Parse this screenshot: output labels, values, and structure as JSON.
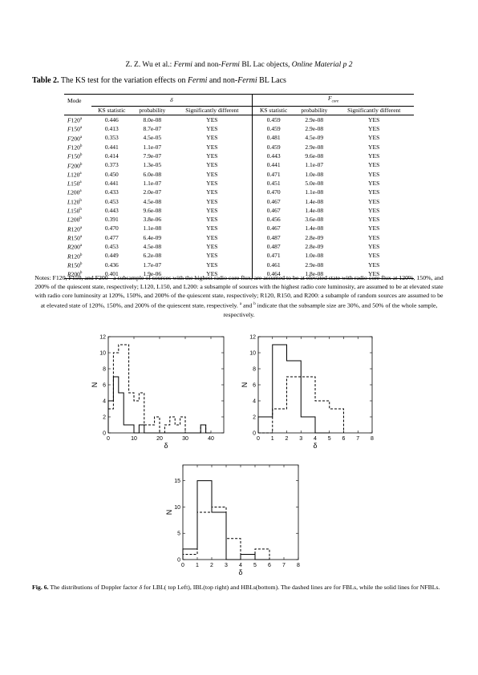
{
  "header": {
    "authors": "Z. Z. Wu et al.: ",
    "fermi": "Fermi",
    "and_non": " and non-",
    "fermi2": "Fermi",
    "rest": " BL Lac objects, ",
    "online": "Online Material p 2"
  },
  "table": {
    "label": "Table 2.",
    "title_a": " The KS test for the variation effects on ",
    "fermi": "Fermi",
    "title_b": " and non-",
    "fermi2": "Fermi",
    "title_c": " BL Lacs",
    "col_mode": "Mode",
    "group1": "δ",
    "group2_main": "F",
    "group2_sub": "core",
    "sub_headers": [
      "KS statistic",
      "probability",
      "Significantly different",
      "KS statistic",
      "probability",
      "Significantly different"
    ],
    "rows": [
      {
        "pre": "F",
        "num": "120",
        "sup": "a",
        "v": [
          "0.446",
          "8.0e-08",
          "YES",
          "0.459",
          "2.9e-08",
          "YES"
        ]
      },
      {
        "pre": "F",
        "num": "150",
        "sup": "a",
        "v": [
          "0.413",
          "8.7e-07",
          "YES",
          "0.459",
          "2.9e-08",
          "YES"
        ]
      },
      {
        "pre": "F",
        "num": "200",
        "sup": "a",
        "v": [
          "0.353",
          "4.5e-05",
          "YES",
          "0.481",
          "4.5e-09",
          "YES"
        ]
      },
      {
        "pre": "F",
        "num": "120",
        "sup": "b",
        "v": [
          "0.441",
          "1.1e-07",
          "YES",
          "0.459",
          "2.9e-08",
          "YES"
        ]
      },
      {
        "pre": "F",
        "num": "150",
        "sup": "b",
        "v": [
          "0.414",
          "7.9e-07",
          "YES",
          "0.443",
          "9.6e-08",
          "YES"
        ]
      },
      {
        "pre": "F",
        "num": "200",
        "sup": "b",
        "v": [
          "0.373",
          "1.3e-05",
          "YES",
          "0.441",
          "1.1e-07",
          "YES"
        ]
      },
      {
        "pre": "L",
        "num": "120",
        "sup": "a",
        "v": [
          "0.450",
          "6.0e-08",
          "YES",
          "0.471",
          "1.0e-08",
          "YES"
        ]
      },
      {
        "pre": "L",
        "num": "150",
        "sup": "a",
        "v": [
          "0.441",
          "1.1e-07",
          "YES",
          "0.451",
          "5.0e-08",
          "YES"
        ]
      },
      {
        "pre": "L",
        "num": "200",
        "sup": "a",
        "v": [
          "0.433",
          "2.0e-07",
          "YES",
          "0.470",
          "1.1e-08",
          "YES"
        ]
      },
      {
        "pre": "L",
        "num": "120",
        "sup": "b",
        "v": [
          "0.453",
          "4.5e-08",
          "YES",
          "0.467",
          "1.4e-08",
          "YES"
        ]
      },
      {
        "pre": "L",
        "num": "150",
        "sup": "b",
        "v": [
          "0.443",
          "9.6e-08",
          "YES",
          "0.467",
          "1.4e-08",
          "YES"
        ]
      },
      {
        "pre": "L",
        "num": "200",
        "sup": "b",
        "v": [
          "0.391",
          "3.8e-06",
          "YES",
          "0.456",
          "3.6e-08",
          "YES"
        ]
      },
      {
        "pre": "R",
        "num": "120",
        "sup": "a",
        "v": [
          "0.470",
          "1.1e-08",
          "YES",
          "0.467",
          "1.4e-08",
          "YES"
        ]
      },
      {
        "pre": "R",
        "num": "150",
        "sup": "a",
        "v": [
          "0.477",
          "6.4e-09",
          "YES",
          "0.487",
          "2.8e-09",
          "YES"
        ]
      },
      {
        "pre": "R",
        "num": "200",
        "sup": "a",
        "v": [
          "0.453",
          "4.5e-08",
          "YES",
          "0.487",
          "2.8e-09",
          "YES"
        ]
      },
      {
        "pre": "R",
        "num": "120",
        "sup": "b",
        "v": [
          "0.449",
          "6.2e-08",
          "YES",
          "0.471",
          "1.0e-08",
          "YES"
        ]
      },
      {
        "pre": "R",
        "num": "150",
        "sup": "b",
        "v": [
          "0.436",
          "1.7e-07",
          "YES",
          "0.461",
          "2.9e-08",
          "YES"
        ]
      },
      {
        "pre": "R",
        "num": "200",
        "sup": "b",
        "v": [
          "0.401",
          "1.9e-06",
          "YES",
          "0.464",
          "1.8e-08",
          "YES"
        ]
      }
    ],
    "notes_a": "Notes: F120, F150, and F200 - a subsample of sources with the highest radio core flux, are assumed to be at elevated state with radio core flux at 120%, 150%, and 200% of the quiescent state, respectively; L120, L150, and L200: a subsample of sources with the highest radio core luminosity, are assumed to be at elevated state with radio core luminosity at 120%, 150%, and 200% of the quiescent state, respectively; R120, R150, and R200: a subample of random sources are assumed to be at elevated state of 120%, 150%, and 200% of the quiescent state, respectively. ",
    "notes_sup_a": "a",
    "notes_and": " and ",
    "notes_sup_b": "b",
    "notes_b": " indicate that the subsample size are 30%, and 50% of the whole sample, respectively."
  },
  "figure": {
    "label": "Fig. 6.",
    "caption_a": " The distributions of Doppler factor ",
    "delta": "δ",
    "caption_b": " for LBL( top Left), IBL(top right) and HBLs(bottom). The dashed lines are for FBLs, while the solid lines for NFBLs."
  },
  "chart_data": [
    {
      "type": "histogram",
      "panel": "LBL",
      "xlabel": "δ",
      "ylabel": "N",
      "xlim": [
        0,
        45
      ],
      "ylim": [
        0,
        12
      ],
      "xticks": [
        0,
        10,
        20,
        30,
        40
      ],
      "yticks": [
        0,
        2,
        4,
        6,
        8,
        10,
        12
      ],
      "bin_width": 2,
      "series": [
        {
          "style": "solid",
          "bins": [
            [
              0,
              2,
              4
            ],
            [
              2,
              4,
              7
            ],
            [
              4,
              6,
              5
            ],
            [
              6,
              8,
              1
            ],
            [
              8,
              10,
              1
            ],
            [
              10,
              12,
              0
            ],
            [
              12,
              14,
              1
            ],
            [
              14,
              16,
              0
            ],
            [
              16,
              18,
              0
            ],
            [
              18,
              20,
              0
            ],
            [
              20,
              22,
              0
            ],
            [
              22,
              24,
              0
            ],
            [
              24,
              26,
              0
            ],
            [
              26,
              28,
              0
            ],
            [
              28,
              30,
              0
            ],
            [
              30,
              32,
              0
            ],
            [
              32,
              34,
              0
            ],
            [
              34,
              36,
              0
            ],
            [
              36,
              38,
              1
            ],
            [
              38,
              40,
              0
            ]
          ]
        },
        {
          "style": "dashed",
          "bins": [
            [
              0,
              2,
              3
            ],
            [
              2,
              4,
              10
            ],
            [
              4,
              6,
              11
            ],
            [
              6,
              8,
              11
            ],
            [
              8,
              10,
              5
            ],
            [
              10,
              12,
              4
            ],
            [
              12,
              14,
              5
            ],
            [
              14,
              16,
              1
            ],
            [
              16,
              18,
              1
            ],
            [
              18,
              20,
              2
            ],
            [
              20,
              22,
              0
            ],
            [
              22,
              24,
              1
            ],
            [
              24,
              26,
              2
            ],
            [
              26,
              28,
              1
            ],
            [
              28,
              30,
              2
            ],
            [
              30,
              32,
              0
            ],
            [
              32,
              34,
              0
            ],
            [
              34,
              36,
              0
            ],
            [
              36,
              38,
              1
            ],
            [
              38,
              40,
              0
            ]
          ]
        }
      ]
    },
    {
      "type": "histogram",
      "panel": "IBL",
      "xlabel": "δ",
      "ylabel": "N",
      "xlim": [
        0,
        8
      ],
      "ylim": [
        0,
        12
      ],
      "xticks": [
        0,
        1,
        2,
        3,
        4,
        5,
        6,
        7,
        8
      ],
      "yticks": [
        0,
        2,
        4,
        6,
        8,
        10,
        12
      ],
      "bin_width": 1,
      "series": [
        {
          "style": "solid",
          "bins": [
            [
              0,
              1,
              2
            ],
            [
              1,
              2,
              11
            ],
            [
              2,
              3,
              9
            ],
            [
              3,
              4,
              2
            ],
            [
              4,
              5,
              0
            ]
          ]
        },
        {
          "style": "dashed",
          "bins": [
            [
              0,
              1,
              0
            ],
            [
              1,
              2,
              3
            ],
            [
              2,
              3,
              7
            ],
            [
              3,
              4,
              7
            ],
            [
              4,
              5,
              4
            ],
            [
              5,
              6,
              3
            ]
          ]
        }
      ]
    },
    {
      "type": "histogram",
      "panel": "HBL",
      "xlabel": "δ",
      "ylabel": "N",
      "xlim": [
        0,
        8
      ],
      "ylim": [
        0,
        18
      ],
      "xticks": [
        0,
        1,
        2,
        3,
        4,
        5,
        6,
        7,
        8
      ],
      "yticks": [
        0,
        5,
        10,
        15
      ],
      "bin_width": 1,
      "series": [
        {
          "style": "solid",
          "bins": [
            [
              0,
              1,
              2
            ],
            [
              1,
              2,
              15
            ],
            [
              2,
              3,
              9
            ],
            [
              3,
              4,
              0
            ],
            [
              4,
              5,
              1
            ],
            [
              5,
              6,
              0
            ]
          ]
        },
        {
          "style": "dashed",
          "bins": [
            [
              0,
              1,
              1
            ],
            [
              1,
              2,
              9
            ],
            [
              2,
              3,
              10
            ],
            [
              3,
              4,
              4
            ],
            [
              4,
              5,
              1
            ],
            [
              5,
              6,
              2
            ]
          ]
        }
      ]
    }
  ]
}
